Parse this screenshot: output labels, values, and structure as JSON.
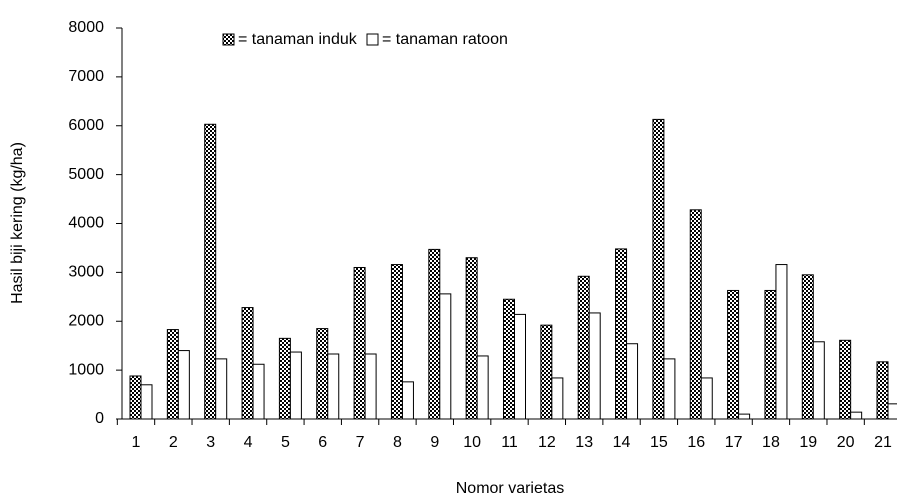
{
  "chart_data": {
    "type": "bar",
    "xlabel": "Nomor varietas",
    "ylabel": "Hasil biji kering (kg/ha)",
    "categories": [
      "1",
      "2",
      "3",
      "4",
      "5",
      "6",
      "7",
      "8",
      "9",
      "10",
      "11",
      "12",
      "13",
      "14",
      "15",
      "16",
      "17",
      "18",
      "19",
      "20",
      "21"
    ],
    "series": [
      {
        "name": "= tanaman induk",
        "color": "#000000",
        "pattern": "checker",
        "values": [
          880,
          1830,
          6030,
          2280,
          1650,
          1850,
          3100,
          3160,
          3470,
          3300,
          2450,
          1920,
          2920,
          3480,
          6130,
          4280,
          2630,
          2630,
          2950,
          1610,
          1170
        ]
      },
      {
        "name": "= tanaman ratoon",
        "color": "#ffffff",
        "values": [
          700,
          1400,
          1230,
          1120,
          1370,
          1330,
          1330,
          760,
          2560,
          1290,
          2140,
          840,
          2170,
          1540,
          1230,
          840,
          100,
          3160,
          1580,
          140,
          310
        ]
      }
    ],
    "ylim": [
      0,
      8000
    ],
    "yticks": [
      0,
      1000,
      2000,
      3000,
      4000,
      5000,
      6000,
      7000,
      8000
    ],
    "grid": false
  }
}
